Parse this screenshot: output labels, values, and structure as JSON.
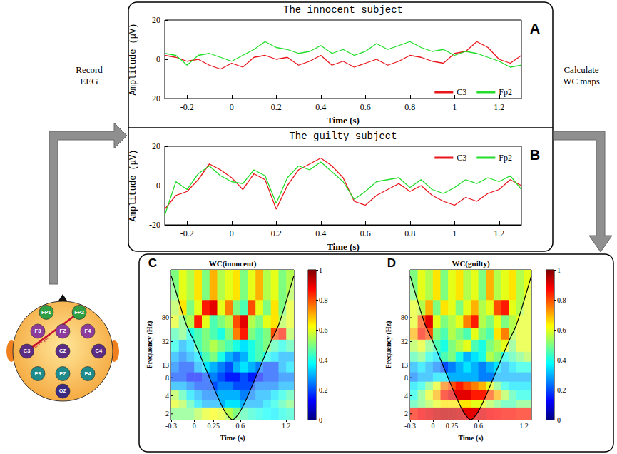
{
  "diagram": {
    "record_label": "Record EEG",
    "calculate_label": "Calculate WC maps",
    "electrodes": [
      {
        "label": "FP1",
        "color": "#2f9e44"
      },
      {
        "label": "FP2",
        "color": "#2f9e44"
      },
      {
        "label": "F3",
        "color": "#8e3c9c"
      },
      {
        "label": "FZ",
        "color": "#8e3c9c"
      },
      {
        "label": "F4",
        "color": "#8e3c9c"
      },
      {
        "label": "C3",
        "color": "#5b2c83"
      },
      {
        "label": "CZ",
        "color": "#5b2c83"
      },
      {
        "label": "C4",
        "color": "#5b2c83"
      },
      {
        "label": "P3",
        "color": "#1f8a8a"
      },
      {
        "label": "PZ",
        "color": "#1f8a8a"
      },
      {
        "label": "P4",
        "color": "#1f8a8a"
      },
      {
        "label": "OZ",
        "color": "#3a2a80"
      }
    ],
    "pair": {
      "label": "C3-Fp2",
      "from": "C3",
      "to": "FP2",
      "color": "#c8102e"
    }
  },
  "chart_data": [
    {
      "type": "line",
      "panel_label": "A",
      "title": "The innocent subject",
      "x_label": "Time (s)",
      "y_label": "Amplitude (μV)",
      "x": [
        -0.3,
        -0.25,
        -0.2,
        -0.15,
        -0.1,
        -0.05,
        0,
        0.05,
        0.1,
        0.15,
        0.2,
        0.25,
        0.3,
        0.35,
        0.4,
        0.45,
        0.5,
        0.55,
        0.6,
        0.65,
        0.7,
        0.75,
        0.8,
        0.85,
        0.9,
        0.95,
        1,
        1.05,
        1.1,
        1.15,
        1.2,
        1.25,
        1.3
      ],
      "series": [
        {
          "name": "C3",
          "color": "#e8161b",
          "values": [
            2,
            1,
            -1,
            0,
            -3,
            -5,
            -2,
            -4,
            1,
            2,
            0,
            1,
            -3,
            -1,
            2,
            -3,
            -1,
            -4,
            -2,
            0,
            -3,
            -1,
            2,
            1,
            -1,
            -2,
            3,
            4,
            9,
            6,
            0,
            -2,
            2
          ]
        },
        {
          "name": "Fp2",
          "color": "#22dd2a",
          "values": [
            3,
            2,
            -3,
            2,
            3,
            1,
            -1,
            2,
            5,
            9,
            6,
            5,
            3,
            4,
            7,
            3,
            5,
            2,
            4,
            8,
            5,
            7,
            9,
            6,
            4,
            5,
            2,
            4,
            3,
            1,
            -1,
            -4,
            -3
          ]
        }
      ],
      "xlim": [
        -0.3,
        1.3
      ],
      "xticks": [
        -0.2,
        0,
        0.2,
        0.4,
        0.6,
        0.8,
        1,
        1.2
      ],
      "ylim": [
        -20,
        20
      ],
      "yticks": [
        -20,
        0,
        20
      ],
      "legend": "lower right",
      "grid": false
    },
    {
      "type": "line",
      "panel_label": "B",
      "title": "The guilty subject",
      "x_label": "Time (s)",
      "y_label": "Amplitude (μV)",
      "x": [
        -0.3,
        -0.25,
        -0.2,
        -0.15,
        -0.1,
        -0.05,
        0,
        0.05,
        0.1,
        0.15,
        0.2,
        0.25,
        0.3,
        0.35,
        0.4,
        0.45,
        0.5,
        0.55,
        0.6,
        0.65,
        0.7,
        0.75,
        0.8,
        0.85,
        0.9,
        0.95,
        1,
        1.05,
        1.1,
        1.15,
        1.2,
        1.25,
        1.3
      ],
      "series": [
        {
          "name": "C3",
          "color": "#e8161b",
          "values": [
            -12,
            -5,
            -3,
            3,
            11,
            8,
            4,
            -2,
            6,
            3,
            -12,
            0,
            8,
            11,
            14,
            10,
            4,
            -8,
            -10,
            -5,
            -2,
            1,
            -3,
            0,
            -5,
            -8,
            -10,
            -6,
            -8,
            -4,
            -2,
            3,
            0
          ]
        },
        {
          "name": "Fp2",
          "color": "#22dd2a",
          "values": [
            -15,
            2,
            -2,
            6,
            10,
            5,
            2,
            1,
            8,
            5,
            -9,
            4,
            10,
            8,
            12,
            7,
            2,
            -7,
            -3,
            2,
            3,
            4,
            -1,
            3,
            -2,
            -4,
            -1,
            3,
            1,
            4,
            2,
            5,
            -2
          ]
        }
      ],
      "xlim": [
        -0.3,
        1.3
      ],
      "xticks": [
        -0.2,
        0,
        0.2,
        0.4,
        0.6,
        0.8,
        1,
        1.2
      ],
      "ylim": [
        -20,
        20
      ],
      "yticks": [
        -20,
        0,
        20
      ],
      "legend": "upper right",
      "grid": false
    },
    {
      "type": "heatmap",
      "panel_label": "C",
      "title": "WC(innocent)",
      "x_label": "Time (s)",
      "y_label": "Frequency (Hz)",
      "time_edges": [
        -0.3,
        -0.2,
        -0.1,
        0,
        0.1,
        0.2,
        0.3,
        0.4,
        0.5,
        0.6,
        0.7,
        0.8,
        0.9,
        1,
        1.1,
        1.2,
        1.3
      ],
      "freq_edges": [
        1.6,
        2.6,
        3.5,
        5,
        7,
        10,
        15,
        22,
        35,
        55,
        90,
        160,
        500
      ],
      "cells": [
        [
          0.5,
          0.5,
          0.5,
          0.55,
          0.6,
          0.62,
          0.6,
          0.55,
          0.5,
          0.45,
          0.42,
          0.4,
          0.38,
          0.36,
          0.4,
          0.42
        ],
        [
          0.6,
          0.55,
          0.45,
          0.35,
          0.3,
          0.3,
          0.3,
          0.35,
          0.35,
          0.3,
          0.3,
          0.3,
          0.35,
          0.4,
          0.45,
          0.5
        ],
        [
          0.55,
          0.45,
          0.35,
          0.3,
          0.25,
          0.25,
          0.3,
          0.3,
          0.3,
          0.25,
          0.25,
          0.3,
          0.3,
          0.35,
          0.4,
          0.45
        ],
        [
          0.3,
          0.3,
          0.25,
          0.2,
          0.2,
          0.2,
          0.25,
          0.25,
          0.2,
          0.2,
          0.2,
          0.25,
          0.25,
          0.25,
          0.3,
          0.3
        ],
        [
          0.2,
          0.2,
          0.15,
          0.15,
          0.2,
          0.25,
          0.2,
          0.15,
          0.15,
          0.2,
          0.15,
          0.15,
          0.2,
          0.2,
          0.25,
          0.25
        ],
        [
          0.25,
          0.2,
          0.2,
          0.3,
          0.35,
          0.3,
          0.25,
          0.2,
          0.3,
          0.35,
          0.3,
          0.25,
          0.2,
          0.2,
          0.3,
          0.35
        ],
        [
          0.3,
          0.25,
          0.3,
          0.35,
          0.45,
          0.5,
          0.4,
          0.3,
          0.25,
          0.3,
          0.4,
          0.45,
          0.4,
          0.35,
          0.3,
          0.3
        ],
        [
          0.4,
          0.3,
          0.35,
          0.45,
          0.5,
          0.55,
          0.5,
          0.45,
          0.4,
          0.35,
          0.4,
          0.45,
          0.5,
          0.45,
          0.4,
          0.45
        ],
        [
          0.45,
          0.5,
          0.4,
          0.45,
          0.5,
          0.45,
          0.4,
          0.5,
          0.75,
          0.85,
          0.5,
          0.45,
          0.5,
          0.8,
          0.85,
          0.55
        ],
        [
          0.6,
          0.5,
          0.55,
          0.85,
          0.6,
          0.45,
          0.5,
          0.55,
          0.8,
          0.9,
          0.55,
          0.5,
          0.6,
          0.65,
          0.55,
          0.6
        ],
        [
          0.55,
          0.65,
          0.5,
          0.6,
          0.85,
          0.9,
          0.6,
          0.75,
          0.5,
          0.45,
          0.8,
          0.6,
          0.5,
          0.65,
          0.5,
          0.6
        ],
        [
          0.5,
          0.6,
          0.55,
          0.65,
          0.5,
          0.7,
          0.55,
          0.6,
          0.65,
          0.5,
          0.6,
          0.7,
          0.55,
          0.6,
          0.5,
          0.55
        ]
      ],
      "xlim": [
        -0.3,
        1.3
      ],
      "xticks": [
        -0.3,
        0,
        0.25,
        0.6,
        1.2
      ],
      "ylim": [
        1.6,
        500
      ],
      "yticks": [
        2,
        4,
        8,
        13,
        32,
        80
      ],
      "log": "y",
      "grid": false,
      "colorbar_range": [
        0,
        1
      ],
      "colorbar_ticks": [
        0,
        0.2,
        0.4,
        0.6,
        0.8,
        1
      ],
      "colorbar_colors": [
        "#00007f",
        "#0000ff",
        "#007fff",
        "#00ffff",
        "#7fff7f",
        "#ffff00",
        "#ff7f00",
        "#ff0000",
        "#7f0000"
      ],
      "coi": {
        "x": [
          -0.3,
          -0.2,
          -0.1,
          0,
          0.1,
          0.2,
          0.3,
          0.4,
          0.5,
          0.6,
          0.7,
          0.8,
          0.9,
          1,
          1.1,
          1.2,
          1.3
        ],
        "y": [
          400,
          150,
          60,
          32,
          16,
          8,
          4,
          2.2,
          1.6,
          2.2,
          4,
          8,
          16,
          32,
          60,
          150,
          400
        ]
      }
    },
    {
      "type": "heatmap",
      "panel_label": "D",
      "title": "WC(guilty)",
      "x_label": "Time (s)",
      "y_label": "Frequency (Hz)",
      "time_edges": [
        -0.3,
        -0.2,
        -0.1,
        0,
        0.1,
        0.2,
        0.3,
        0.4,
        0.5,
        0.6,
        0.7,
        0.8,
        0.9,
        1,
        1.1,
        1.2,
        1.3
      ],
      "freq_edges": [
        1.6,
        2.6,
        3.5,
        5,
        7,
        10,
        15,
        22,
        35,
        55,
        90,
        160,
        500
      ],
      "cells": [
        [
          0.85,
          0.88,
          0.9,
          0.92,
          0.93,
          0.93,
          0.92,
          0.9,
          0.9,
          0.9,
          0.88,
          0.87,
          0.86,
          0.86,
          0.85,
          0.85
        ],
        [
          0.45,
          0.5,
          0.55,
          0.6,
          0.65,
          0.65,
          0.65,
          0.65,
          0.6,
          0.6,
          0.55,
          0.5,
          0.45,
          0.45,
          0.5,
          0.5
        ],
        [
          0.4,
          0.5,
          0.6,
          0.7,
          0.85,
          0.9,
          0.9,
          0.9,
          0.85,
          0.85,
          0.8,
          0.7,
          0.55,
          0.45,
          0.4,
          0.4
        ],
        [
          0.35,
          0.4,
          0.5,
          0.6,
          0.75,
          0.8,
          0.85,
          0.8,
          0.75,
          0.7,
          0.6,
          0.5,
          0.4,
          0.35,
          0.35,
          0.35
        ],
        [
          0.25,
          0.3,
          0.3,
          0.35,
          0.35,
          0.3,
          0.3,
          0.3,
          0.3,
          0.25,
          0.25,
          0.3,
          0.3,
          0.3,
          0.3,
          0.3
        ],
        [
          0.3,
          0.35,
          0.3,
          0.25,
          0.2,
          0.25,
          0.3,
          0.35,
          0.3,
          0.25,
          0.3,
          0.35,
          0.3,
          0.35,
          0.4,
          0.4
        ],
        [
          0.45,
          0.5,
          0.4,
          0.35,
          0.45,
          0.5,
          0.4,
          0.3,
          0.35,
          0.4,
          0.55,
          0.5,
          0.4,
          0.45,
          0.5,
          0.55
        ],
        [
          0.55,
          0.6,
          0.5,
          0.45,
          0.4,
          0.5,
          0.55,
          0.6,
          0.45,
          0.4,
          0.5,
          0.55,
          0.6,
          0.5,
          0.6,
          0.6
        ],
        [
          0.7,
          0.85,
          0.8,
          0.5,
          0.45,
          0.55,
          0.5,
          0.45,
          0.6,
          0.5,
          0.45,
          0.65,
          0.75,
          0.55,
          0.6,
          0.6
        ],
        [
          0.6,
          0.8,
          0.9,
          0.6,
          0.5,
          0.55,
          0.6,
          0.75,
          0.85,
          0.55,
          0.5,
          0.6,
          0.5,
          0.55,
          0.6,
          0.6
        ],
        [
          0.6,
          0.55,
          0.7,
          0.5,
          0.65,
          0.6,
          0.5,
          0.6,
          0.7,
          0.55,
          0.6,
          0.8,
          0.85,
          0.6,
          0.55,
          0.6
        ],
        [
          0.5,
          0.6,
          0.55,
          0.65,
          0.5,
          0.6,
          0.65,
          0.55,
          0.6,
          0.5,
          0.7,
          0.55,
          0.6,
          0.65,
          0.55,
          0.6
        ]
      ],
      "xlim": [
        -0.3,
        1.3
      ],
      "xticks": [
        -0.3,
        0,
        0.25,
        0.6,
        1.2
      ],
      "ylim": [
        1.6,
        500
      ],
      "yticks": [
        2,
        4,
        8,
        13,
        32,
        80
      ],
      "log": "y",
      "grid": false,
      "colorbar_range": [
        0,
        1
      ],
      "colorbar_ticks": [
        0,
        0.2,
        0.4,
        0.6,
        0.8,
        1
      ],
      "colorbar_colors": [
        "#00007f",
        "#0000ff",
        "#007fff",
        "#00ffff",
        "#7fff7f",
        "#ffff00",
        "#ff7f00",
        "#ff0000",
        "#7f0000"
      ],
      "coi": {
        "x": [
          -0.3,
          -0.2,
          -0.1,
          0,
          0.1,
          0.2,
          0.3,
          0.4,
          0.5,
          0.6,
          0.7,
          0.8,
          0.9,
          1,
          1.1,
          1.2,
          1.3
        ],
        "y": [
          400,
          150,
          60,
          32,
          16,
          8,
          4,
          2.2,
          1.6,
          2.2,
          4,
          8,
          16,
          32,
          60,
          150,
          400
        ]
      }
    }
  ]
}
